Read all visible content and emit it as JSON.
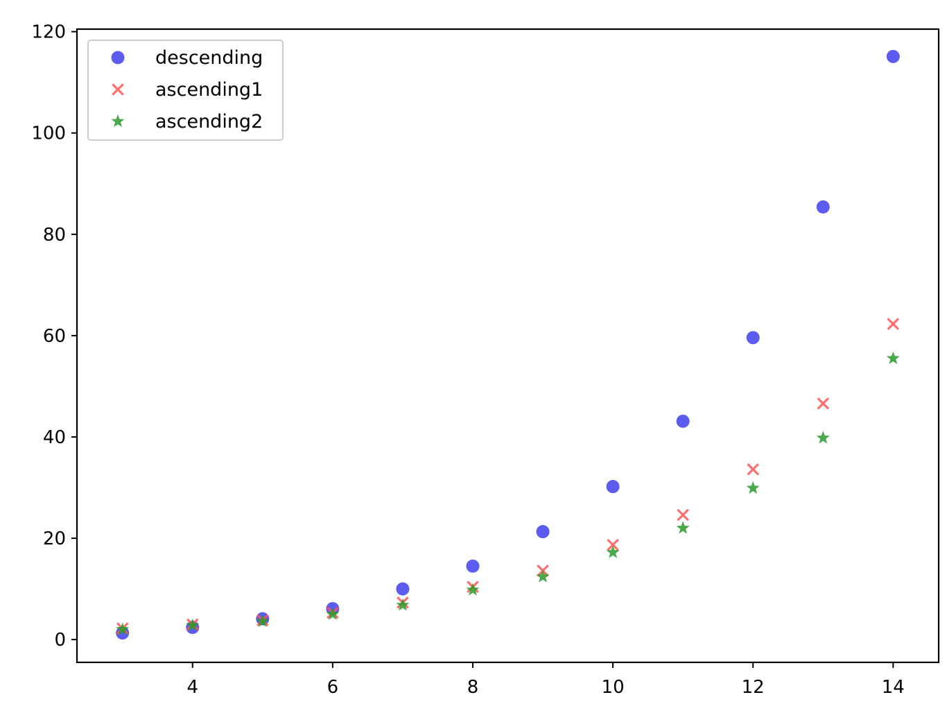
{
  "chart_data": {
    "type": "scatter",
    "title": "",
    "xlabel": "",
    "ylabel": "",
    "xlim": [
      2.35,
      14.65
    ],
    "ylim": [
      -4.5,
      120.5
    ],
    "x_ticks": [
      4,
      6,
      8,
      10,
      12,
      14
    ],
    "y_ticks": [
      0,
      20,
      40,
      60,
      80,
      100,
      120
    ],
    "grid": false,
    "legend_position": "top-left",
    "series": [
      {
        "name": "descending",
        "marker": "circle",
        "color": "#3333ee",
        "x": [
          3,
          4,
          5,
          6,
          7,
          8,
          9,
          10,
          11,
          12,
          13,
          14
        ],
        "y": [
          1.3,
          2.4,
          4.1,
          6.1,
          10.0,
          14.5,
          21.3,
          30.2,
          43.1,
          59.6,
          85.4,
          115.1
        ]
      },
      {
        "name": "ascending1",
        "marker": "x",
        "color": "#ff5555",
        "x": [
          3,
          4,
          5,
          6,
          7,
          8,
          9,
          10,
          11,
          12,
          13,
          14
        ],
        "y": [
          2.2,
          3.0,
          3.8,
          5.3,
          7.3,
          10.4,
          13.6,
          18.7,
          24.6,
          33.6,
          46.6,
          62.3
        ]
      },
      {
        "name": "ascending2",
        "marker": "star",
        "color": "#2a9a2a",
        "x": [
          3,
          4,
          5,
          6,
          7,
          8,
          9,
          10,
          11,
          12,
          13,
          14
        ],
        "y": [
          2.0,
          2.8,
          3.6,
          5.0,
          6.8,
          9.8,
          12.4,
          17.2,
          22.0,
          29.9,
          39.8,
          55.5
        ]
      }
    ]
  }
}
